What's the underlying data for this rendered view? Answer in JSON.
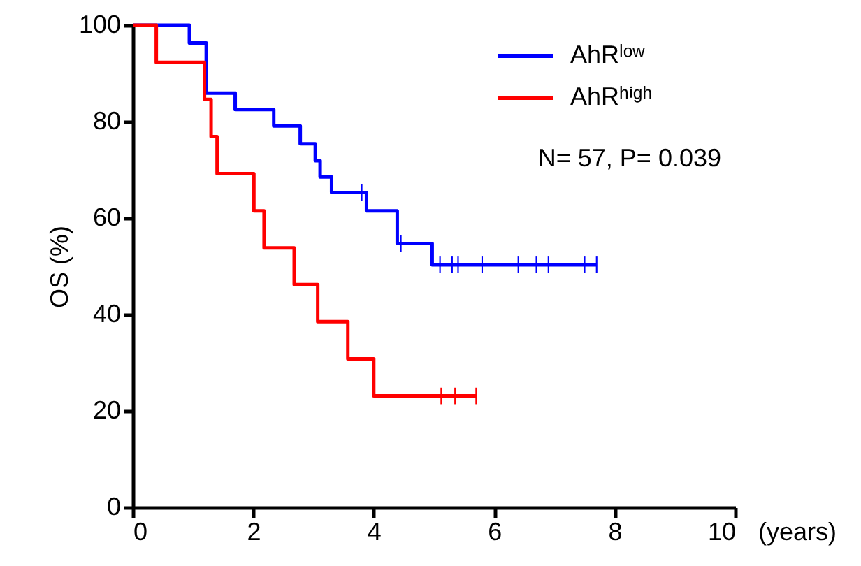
{
  "chart_data": {
    "type": "step",
    "xlabel": "(years)",
    "ylabel": "OS (%)",
    "xlim": [
      0,
      10
    ],
    "xticks": [
      0,
      2,
      4,
      6,
      8,
      10
    ],
    "ylim": [
      0,
      100
    ],
    "yticks": [
      0,
      20,
      40,
      60,
      80,
      100
    ],
    "grid": false,
    "legend": "top right",
    "line_style": "solid",
    "annotations": [
      "N= 57, P= 0.039"
    ],
    "series": [
      {
        "name": "AhRˡᵒʷ",
        "color": "#0000ff",
        "x": [
          0,
          0.94,
          1.22,
          1.7,
          2.34,
          2.78,
          3.03,
          3.11,
          3.3,
          3.88,
          4.39,
          4.97,
          7.7
        ],
        "values": [
          100,
          96.3,
          85.9,
          82.5,
          79.1,
          75.4,
          71.9,
          68.5,
          65.3,
          61.5,
          54.7,
          50.3,
          50.3
        ]
      },
      {
        "name": "AhRʰⁱᵍʰ",
        "color": "#ff0000",
        "x": [
          0,
          0.39,
          1.19,
          1.3,
          1.4,
          2.01,
          2.18,
          2.68,
          3.07,
          3.57,
          4.0,
          5.7
        ],
        "values": [
          100,
          92.3,
          84.6,
          76.9,
          69.2,
          61.5,
          53.8,
          46.2,
          38.5,
          30.8,
          23.1,
          23.1
        ]
      },
      {
        "color": "#0000ff",
        "type": "scatter",
        "x": [
          3.8,
          4.45,
          5.1,
          5.3,
          5.4,
          5.8,
          6.4,
          6.7,
          6.9,
          7.5,
          7.7
        ],
        "values": [
          65.3,
          54.7,
          50.3,
          50.3,
          50.3,
          50.3,
          50.3,
          50.3,
          50.3,
          50.3,
          50.3
        ]
      },
      {
        "color": "#ff0000",
        "type": "scatter",
        "x": [
          5.12,
          5.35,
          5.7
        ],
        "values": [
          23.1,
          23.1,
          23.1
        ]
      }
    ]
  }
}
